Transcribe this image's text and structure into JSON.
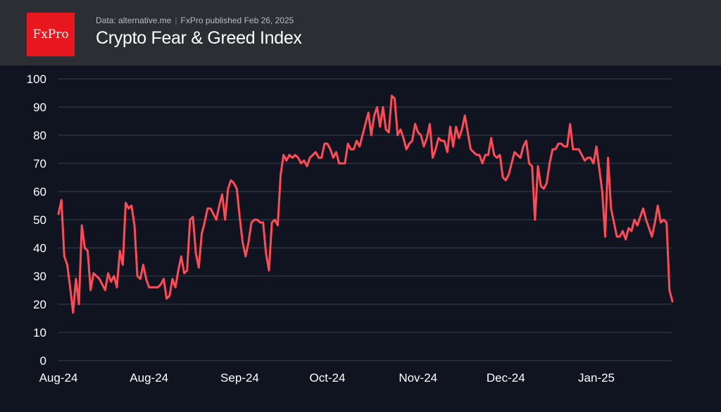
{
  "header": {
    "logo_text": "FxPro",
    "source_data": "Data: alternative.me",
    "source_separator": "|",
    "source_publisher": "FxPro published Feb 26, 2025",
    "title": "Crypto Fear & Greed Index"
  },
  "colors": {
    "background": "#0f1420",
    "header_background": "#2c2e33",
    "logo_background": "#e8171d",
    "line": "#ff4b55",
    "grid": "#3a3f4b"
  },
  "chart_data": {
    "type": "line",
    "title": "Crypto Fear & Greed Index",
    "xlabel": "",
    "ylabel": "",
    "ylim": [
      0,
      100
    ],
    "yticks": [
      0,
      10,
      20,
      30,
      40,
      50,
      60,
      70,
      80,
      90,
      100
    ],
    "grid": true,
    "x_tick_labels": [
      "Aug-24",
      "Aug-24",
      "Sep-24",
      "Oct-24",
      "Nov-24",
      "Dec-24",
      "Jan-25"
    ],
    "x_tick_index": [
      0,
      31,
      62,
      92,
      123,
      153,
      184
    ],
    "series": [
      {
        "name": "Crypto Fear & Greed Index",
        "values": [
          52,
          57,
          37,
          34,
          26,
          17,
          29,
          20,
          48,
          40,
          39,
          25,
          31,
          30,
          29,
          27,
          25,
          31,
          28,
          30,
          26,
          39,
          34,
          56,
          54,
          55,
          48,
          30,
          29,
          34,
          29,
          26,
          26,
          26,
          26,
          27,
          29,
          22,
          23,
          29,
          26,
          32,
          37,
          31,
          32,
          50,
          51,
          38,
          33,
          45,
          49,
          54,
          54,
          52,
          50,
          55,
          59,
          50,
          61,
          64,
          63,
          61,
          51,
          42,
          37,
          42,
          49,
          50,
          50,
          49,
          49,
          38,
          32,
          49,
          50,
          48,
          66,
          73,
          71,
          73,
          72,
          73,
          72,
          70,
          71,
          69,
          72,
          73,
          74,
          72,
          72,
          77,
          77,
          75,
          72,
          74,
          70,
          70,
          70,
          77,
          75,
          75,
          78,
          76,
          80,
          84,
          88,
          80,
          87,
          90,
          83,
          90,
          82,
          81,
          94,
          93,
          80,
          82,
          79,
          75,
          77,
          78,
          84,
          81,
          80,
          76,
          79,
          84,
          72,
          75,
          79,
          78,
          78,
          74,
          83,
          76,
          83,
          79,
          82,
          87,
          81,
          75,
          74,
          73,
          73,
          70,
          73,
          73,
          79,
          73,
          72,
          73,
          65,
          64,
          66,
          70,
          74,
          73,
          72,
          76,
          78,
          70,
          69,
          50,
          69,
          62,
          61,
          63,
          70,
          75,
          75,
          77,
          77,
          76,
          76,
          84,
          75,
          75,
          75,
          73,
          71,
          72,
          72,
          70,
          76,
          68,
          60,
          44,
          72,
          54,
          49,
          44,
          44,
          46,
          43,
          47,
          46,
          50,
          48,
          51,
          54,
          50,
          47,
          44,
          49,
          55,
          49,
          50,
          49,
          25,
          21
        ]
      }
    ]
  }
}
